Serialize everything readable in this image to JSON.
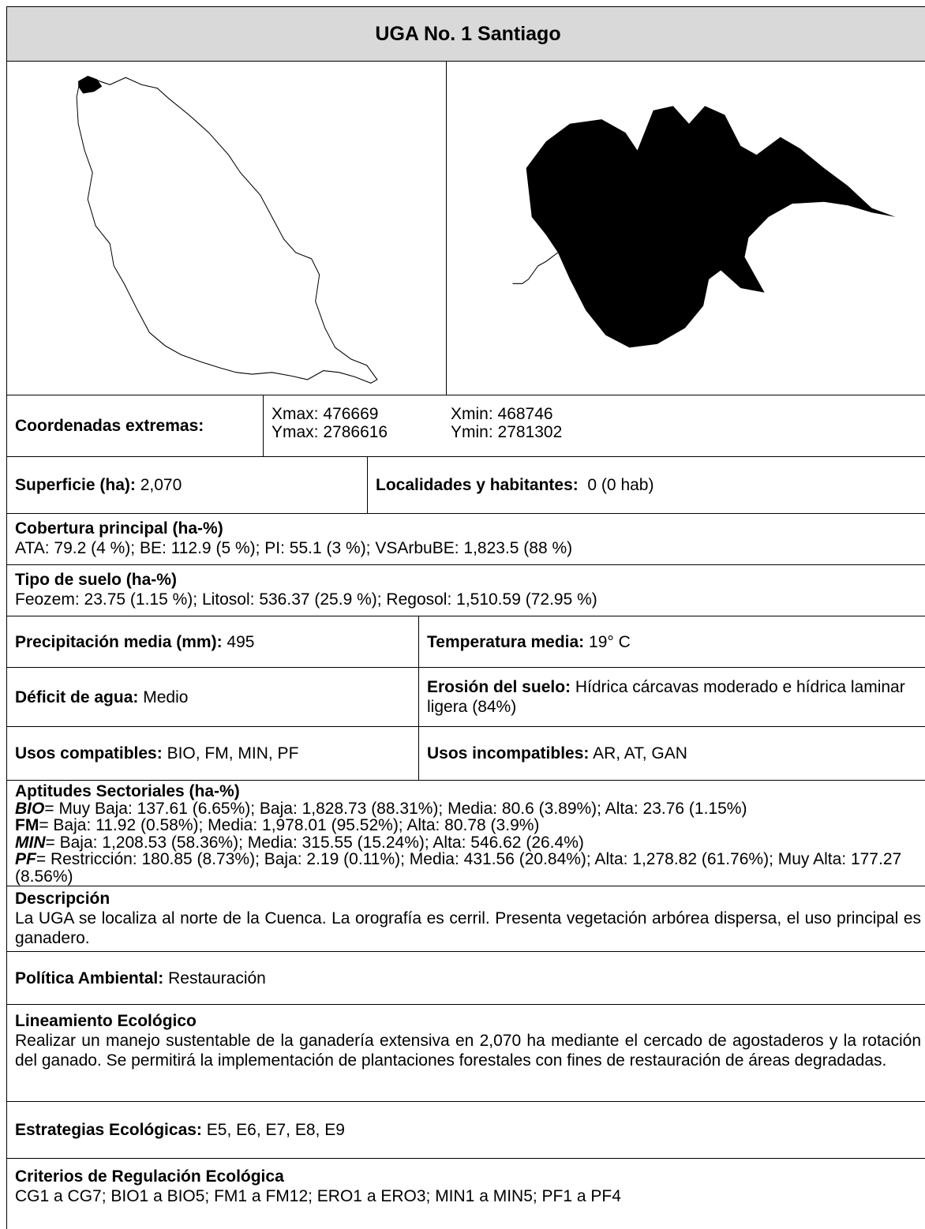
{
  "title": "UGA No. 1 Santiago",
  "coordinates": {
    "label": "Coordenadas extremas:",
    "xmax": "Xmax: 476669",
    "xmin": "Xmin: 468746",
    "ymax": "Ymax: 2786616",
    "ymin": "Ymin: 2781302"
  },
  "superficie": {
    "label": "Superficie (ha):",
    "value": "2,070"
  },
  "localidades": {
    "label": "Localidades y habitantes:",
    "value": "0 (0 hab)"
  },
  "cobertura": {
    "label": "Cobertura principal (ha-%)",
    "value": "ATA: 79.2 (4 %); BE: 112.9 (5 %); PI: 55.1 (3 %); VSArbuBE: 1,823.5 (88 %)"
  },
  "suelo": {
    "label": "Tipo de suelo (ha-%)",
    "value": "Feozem: 23.75 (1.15 %); Litosol: 536.37 (25.9 %); Regosol: 1,510.59 (72.95 %)"
  },
  "precipitacion": {
    "label": "Precipitación media (mm):",
    "value": "495"
  },
  "temperatura": {
    "label": "Temperatura media:",
    "value": "19° C"
  },
  "deficit": {
    "label": "Déficit de agua:",
    "value": "Medio"
  },
  "erosion": {
    "label": "Erosión del suelo:",
    "value": "Hídrica cárcavas moderado e hídrica laminar ligera (84%)"
  },
  "compatibles": {
    "label": "Usos compatibles:",
    "value": "BIO, FM, MIN, PF"
  },
  "incompatibles": {
    "label": "Usos incompatibles:",
    "value": "AR, AT, GAN"
  },
  "aptitudes": {
    "label": "Aptitudes Sectoriales (ha-%)",
    "items": [
      {
        "code": "BIO",
        "text": "= Muy Baja: 137.61 (6.65%); Baja: 1,828.73 (88.31%); Media: 80.6 (3.89%); Alta: 23.76 (1.15%)"
      },
      {
        "code": "FM",
        "text": "= Baja: 11.92 (0.58%); Media: 1,978.01 (95.52%); Alta: 80.78 (3.9%)"
      },
      {
        "code": "MIN",
        "text": "= Baja: 1,208.53 (58.36%); Media: 315.55 (15.24%); Alta: 546.62 (26.4%)"
      },
      {
        "code": "PF",
        "text": "= Restricción: 180.85 (8.73%); Baja: 2.19 (0.11%); Media: 431.56 (20.84%); Alta: 1,278.82 (61.76%); Muy Alta: 177.27 (8.56%)"
      }
    ]
  },
  "descripcion": {
    "label": "Descripción",
    "value": "La UGA se localiza al norte de la Cuenca. La orografía es cerril. Presenta vegetación arbórea dispersa, el uso principal es ganadero."
  },
  "politica": {
    "label": "Política Ambiental:",
    "value": "Restauración"
  },
  "lineamiento": {
    "label": "Lineamiento Ecológico",
    "value": "Realizar un manejo sustentable de la ganadería extensiva en 2,070 ha mediante el cercado de agostaderos y la rotación del ganado. Se permitirá la implementación de plantaciones forestales con fines de restauración de áreas degradadas."
  },
  "estrategias": {
    "label": "Estrategias Ecológicas:",
    "value": "E5, E6, E7, E8, E9"
  },
  "criterios": {
    "label": "Criterios de Regulación Ecológica",
    "value": "CG1 a CG7; BIO1 a BIO5; FM1 a FM12; ERO1 a ERO3; MIN1 a MIN5; PF1 a PF4"
  }
}
